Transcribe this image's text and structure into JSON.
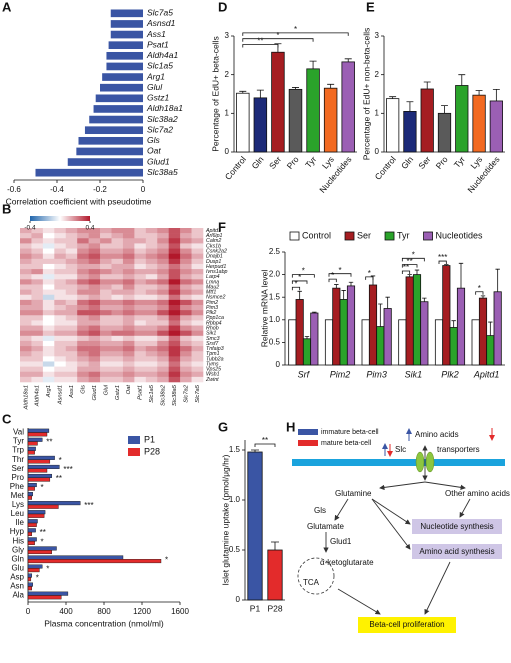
{
  "chart_data": [
    {
      "type": "hbar",
      "panel": "A",
      "xlabel": "Correlation coefficient with pseudotime",
      "color": "#3a55a4",
      "categories": [
        "Slc7a5",
        "Asnsd1",
        "Ass1",
        "Psat1",
        "Aldh4a1",
        "Slc1a5",
        "Arg1",
        "Glul",
        "Gstz1",
        "Aldh18a1",
        "Slc38a2",
        "Slc7a2",
        "Gls",
        "Oat",
        "Glud1",
        "Slc38a5"
      ],
      "values": [
        -0.15,
        -0.15,
        -0.15,
        -0.16,
        -0.17,
        -0.17,
        -0.19,
        -0.2,
        -0.22,
        -0.23,
        -0.25,
        -0.27,
        -0.3,
        -0.31,
        -0.35,
        -0.5
      ],
      "xlim": [
        -0.6,
        0
      ],
      "xticks": [
        -0.6,
        -0.4,
        -0.2,
        0
      ]
    },
    {
      "type": "bar",
      "panel": "D",
      "ylabel": "Percentage of EdU+ beta-cells",
      "categories": [
        "Control",
        "Gln",
        "Ser",
        "Pro",
        "Tyr",
        "Lys",
        "Nucleotides"
      ],
      "values": [
        1.52,
        1.4,
        2.58,
        1.62,
        2.15,
        1.65,
        2.33
      ],
      "errors": [
        0.05,
        0.2,
        0.22,
        0.05,
        0.2,
        0.1,
        0.08
      ],
      "colors": [
        "#ffffff",
        "#1c2a78",
        "#a51d21",
        "#5a5a5a",
        "#2aa32a",
        "#f26a21",
        "#9b5fb4"
      ],
      "ylim": [
        0,
        3
      ],
      "yticks": [
        0,
        1,
        2,
        3
      ],
      "annotations": [
        {
          "text": "**",
          "from": "Control",
          "to": "Ser",
          "y": 2.78
        },
        {
          "text": "*",
          "from": "Control",
          "to": "Tyr",
          "y": 2.93
        },
        {
          "text": "*",
          "from": "Control",
          "to": "Nucleotides",
          "y": 3.08
        }
      ]
    },
    {
      "type": "bar",
      "panel": "E",
      "ylabel": "Percentage of EdU+ non-beta-cells",
      "categories": [
        "Control",
        "Gln",
        "Ser",
        "Pro",
        "Tyr",
        "Lys",
        "Nucleotides"
      ],
      "values": [
        1.38,
        1.05,
        1.63,
        1.0,
        1.72,
        1.47,
        1.32
      ],
      "errors": [
        0.05,
        0.25,
        0.18,
        0.2,
        0.28,
        0.12,
        0.3
      ],
      "colors": [
        "#ffffff",
        "#1c2a78",
        "#a51d21",
        "#5a5a5a",
        "#2aa32a",
        "#f26a21",
        "#9b5fb4"
      ],
      "ylim": [
        0,
        3
      ],
      "yticks": [
        0,
        1,
        2,
        3
      ]
    },
    {
      "type": "heatmap",
      "panel": "B",
      "clim": [
        -0.4,
        0.4
      ],
      "colorbar_ticks": [
        -0.4,
        0.4
      ],
      "columns": [
        "Aldh18a1",
        "Aldh4a1",
        "Arg1",
        "Asnsd1",
        "Ass1",
        "Gls",
        "Glud1",
        "Glul",
        "Gstz1",
        "Oat",
        "Psat1",
        "Slc1a5",
        "Slc38a2",
        "Slc38a5",
        "Slc7a2",
        "Slc7a5"
      ],
      "rows": [
        "Apitd1",
        "Arl6ip1",
        "Calm2",
        "Cks1b",
        "Csnk2a2",
        "Dnajb1",
        "Dusp1",
        "Herpud1",
        "Ivns1abp",
        "Larp4",
        "Lmna",
        "Mau2",
        "Mtf1",
        "Nsmce2",
        "Pim2",
        "Pim3",
        "Plk2",
        "Ppp1ca",
        "Rbbp4",
        "Rhob",
        "Sik1",
        "Smc3",
        "Srsf7",
        "Tnfaip3",
        "Tpm1",
        "Tubb2a",
        "Tyms",
        "Vps25",
        "Wsb1",
        "Zwint"
      ],
      "values": [
        [
          0.15,
          0.1,
          0.05,
          0.1,
          0.15,
          0.2,
          0.2,
          0.15,
          0.2,
          0.2,
          0.1,
          0.15,
          0.2,
          0.3,
          0.2,
          0.1
        ],
        [
          0.1,
          0.15,
          0,
          0.05,
          0.1,
          0.15,
          0.2,
          0.1,
          0.15,
          0.2,
          0.1,
          0.1,
          0.15,
          0.3,
          0.15,
          0.1
        ],
        [
          0.2,
          0.1,
          0.05,
          0.1,
          0.1,
          0.25,
          0.15,
          0.2,
          0.1,
          0.15,
          0.15,
          0.1,
          0.2,
          0.35,
          0.2,
          0.15
        ],
        [
          0.1,
          0.05,
          -0.05,
          0.05,
          0.1,
          0.15,
          0.2,
          0.1,
          0.1,
          0.15,
          0.05,
          0.1,
          0.15,
          0.3,
          0.1,
          0.05
        ],
        [
          0.15,
          0.1,
          0,
          0.1,
          0.05,
          0.2,
          0.25,
          0.15,
          0.15,
          0.2,
          0.1,
          0.15,
          0.2,
          0.35,
          0.2,
          0.1
        ],
        [
          0.2,
          0.15,
          0.05,
          0.15,
          0.1,
          0.25,
          0.3,
          0.2,
          0.2,
          0.25,
          0.15,
          0.2,
          0.25,
          0.4,
          0.25,
          0.15
        ],
        [
          0.15,
          0.1,
          0.1,
          0.1,
          0.15,
          0.2,
          0.25,
          0.15,
          0.1,
          0.2,
          0.1,
          0.15,
          0.2,
          0.35,
          0.2,
          0.1
        ],
        [
          0.1,
          0.1,
          0,
          0.05,
          0.1,
          0.15,
          0.15,
          0.1,
          0.15,
          0.15,
          0.05,
          0.1,
          0.15,
          0.25,
          0.15,
          0.05
        ],
        [
          0.15,
          0.2,
          0.05,
          0.1,
          0.1,
          0.2,
          0.25,
          0.2,
          0.15,
          0.2,
          0.15,
          0.15,
          0.2,
          0.3,
          0.2,
          0.15
        ],
        [
          0.1,
          0.05,
          -0.05,
          0.05,
          0.05,
          0.15,
          0.2,
          0.1,
          0.1,
          0.15,
          0.1,
          0.05,
          0.15,
          0.3,
          0.15,
          0.1
        ],
        [
          0.2,
          0.15,
          0.05,
          0.1,
          0.15,
          0.25,
          0.3,
          0.2,
          0.2,
          0.25,
          0.15,
          0.2,
          0.25,
          0.4,
          0.25,
          0.2
        ],
        [
          0.1,
          0.1,
          0,
          0.1,
          0.1,
          0.15,
          0.2,
          0.15,
          0.1,
          0.2,
          0.1,
          0.1,
          0.15,
          0.3,
          0.15,
          0.1
        ],
        [
          0.15,
          0.1,
          0.05,
          0.05,
          0.1,
          0.2,
          0.2,
          0.1,
          0.15,
          0.15,
          0.1,
          0.15,
          0.2,
          0.35,
          0.2,
          0.15
        ],
        [
          0.05,
          0.1,
          -0.1,
          0.05,
          0.05,
          0.1,
          0.15,
          0.1,
          0.05,
          0.1,
          0.05,
          0.05,
          0.1,
          0.25,
          0.1,
          0.05
        ],
        [
          0.2,
          0.15,
          0.05,
          0.15,
          0.1,
          0.25,
          0.3,
          0.2,
          0.2,
          0.25,
          0.2,
          0.2,
          0.25,
          0.4,
          0.3,
          0.2
        ],
        [
          0.15,
          0.15,
          0.05,
          0.1,
          0.15,
          0.2,
          0.25,
          0.15,
          0.15,
          0.2,
          0.15,
          0.15,
          0.2,
          0.35,
          0.2,
          0.15
        ],
        [
          0.2,
          0.2,
          0.1,
          0.15,
          0.15,
          0.3,
          0.3,
          0.25,
          0.2,
          0.25,
          0.2,
          0.2,
          0.3,
          0.4,
          0.3,
          0.2
        ],
        [
          0.1,
          0.1,
          0,
          0.05,
          0.1,
          0.15,
          0.2,
          0.1,
          0.1,
          0.15,
          0.1,
          0.1,
          0.15,
          0.3,
          0.15,
          0.1
        ],
        [
          0.1,
          0.05,
          0,
          0.05,
          0.05,
          0.15,
          0.15,
          0.1,
          0.1,
          0.15,
          0.05,
          0.1,
          0.1,
          0.25,
          0.1,
          0.05
        ],
        [
          0.15,
          0.15,
          0.05,
          0.1,
          0.1,
          0.2,
          0.25,
          0.15,
          0.15,
          0.2,
          0.15,
          0.15,
          0.2,
          0.35,
          0.2,
          0.15
        ],
        [
          0.2,
          0.2,
          0.1,
          0.15,
          0.15,
          0.25,
          0.3,
          0.2,
          0.25,
          0.25,
          0.2,
          0.2,
          0.3,
          0.4,
          0.3,
          0.2
        ],
        [
          0.1,
          0.05,
          -0.05,
          0.05,
          0.05,
          0.1,
          0.15,
          0.1,
          0.05,
          0.1,
          0.05,
          0.05,
          0.1,
          0.25,
          0.1,
          0.05
        ],
        [
          0.15,
          0.1,
          0,
          0.1,
          0.1,
          0.2,
          0.2,
          0.15,
          0.15,
          0.2,
          0.1,
          0.1,
          0.2,
          0.3,
          0.15,
          0.1
        ],
        [
          0.2,
          0.15,
          0.05,
          0.1,
          0.15,
          0.25,
          0.25,
          0.2,
          0.2,
          0.25,
          0.15,
          0.2,
          0.25,
          0.35,
          0.25,
          0.15
        ],
        [
          0.15,
          0.1,
          0.05,
          0.1,
          0.1,
          0.2,
          0.25,
          0.15,
          0.15,
          0.2,
          0.1,
          0.15,
          0.2,
          0.35,
          0.2,
          0.1
        ],
        [
          0.1,
          0.1,
          0,
          0.05,
          0.1,
          0.15,
          0.2,
          0.1,
          0.1,
          0.15,
          0.1,
          0.1,
          0.15,
          0.3,
          0.15,
          0.1
        ],
        [
          0.05,
          0.05,
          -0.1,
          0,
          0.05,
          0.1,
          0.15,
          0.05,
          0.05,
          0.1,
          0.05,
          0.05,
          0.1,
          0.25,
          0.1,
          0.05
        ],
        [
          0.1,
          0.1,
          0,
          0.05,
          0.05,
          0.15,
          0.15,
          0.1,
          0.1,
          0.15,
          0.1,
          0.1,
          0.15,
          0.3,
          0.15,
          0.1
        ],
        [
          0.15,
          0.15,
          0.05,
          0.1,
          0.1,
          0.2,
          0.25,
          0.15,
          0.15,
          0.2,
          0.15,
          0.15,
          0.2,
          0.35,
          0.2,
          0.15
        ],
        [
          0.1,
          0.05,
          -0.05,
          0.05,
          0.05,
          0.15,
          0.2,
          0.1,
          0.1,
          0.15,
          0.05,
          0.1,
          0.15,
          0.3,
          0.15,
          0.05
        ]
      ]
    },
    {
      "type": "grouped_bar",
      "panel": "F",
      "ylabel": "Relative mRNA level",
      "categories": [
        "Srf",
        "Pim2",
        "Pim3",
        "Sik1",
        "Plk2",
        "Apitd1"
      ],
      "series": [
        {
          "name": "Control",
          "color": "#ffffff",
          "values": [
            1,
            1,
            1,
            1,
            1,
            1
          ]
        },
        {
          "name": "Ser",
          "color": "#a51d21",
          "values": [
            1.45,
            1.7,
            1.77,
            1.95,
            2.2,
            1.48
          ],
          "errors": [
            0.18,
            0.08,
            0.2,
            0.05,
            0.02,
            0.05
          ]
        },
        {
          "name": "Tyr",
          "color": "#2aa32a",
          "values": [
            0.58,
            1.45,
            0.85,
            2.0,
            0.83,
            0.65
          ],
          "errors": [
            0.05,
            0.2,
            0.5,
            0.1,
            0.15,
            0.3
          ]
        },
        {
          "name": "Nucleotides",
          "color": "#9b5fb4",
          "values": [
            1.15,
            1.75,
            1.25,
            1.4,
            1.7,
            1.62
          ],
          "errors": [
            0.02,
            0.08,
            0.25,
            0.08,
            0.55,
            0.5
          ]
        }
      ],
      "ylim": [
        0,
        2.5
      ],
      "yticks": [
        0,
        0.5,
        {
          "value": 1,
          "label": "1.0"
        },
        1.5,
        {
          "value": 2,
          "label": "2.0"
        },
        2.5
      ],
      "annotations": [
        {
          "text": "*",
          "category": "Srf",
          "from": "Control",
          "to": "Ser",
          "y": 1.72
        },
        {
          "text": "*",
          "category": "Srf",
          "from": "Control",
          "to": "Tyr",
          "y": 1.86
        },
        {
          "text": "*",
          "category": "Srf",
          "from": "Control",
          "to": "Nucleotides",
          "y": 2.0
        },
        {
          "text": "*",
          "category": "Pim2",
          "from": "Control",
          "to": "Ser",
          "y": 1.9
        },
        {
          "text": "*",
          "category": "Pim2",
          "from": "Control",
          "to": "Nucleotides",
          "y": 2.02
        },
        {
          "text": "*",
          "category": "Pim3",
          "from": "Control",
          "to": "Ser",
          "y": 1.95
        },
        {
          "text": "**",
          "category": "Sik1",
          "from": "Control",
          "to": "Ser",
          "y": 2.08
        },
        {
          "text": "**",
          "category": "Sik1",
          "from": "Control",
          "to": "Tyr",
          "y": 2.22
        },
        {
          "text": "*",
          "category": "Sik1",
          "from": "Control",
          "to": "Nucleotides",
          "y": 2.36
        },
        {
          "text": "***",
          "category": "Plk2",
          "from": "Control",
          "to": "Ser",
          "y": 2.3
        },
        {
          "text": "*",
          "category": "Apitd1",
          "from": "Control",
          "to": "Ser",
          "y": 1.62
        }
      ]
    },
    {
      "type": "grouped_hbar",
      "panel": "C",
      "xlabel": "Plasma concentration (nmol/ml)",
      "categories": [
        "Val",
        "Tyr",
        "Trp",
        "Thr",
        "Ser",
        "Pro",
        "Phe",
        "Met",
        "Lys",
        "Leu",
        "Ile",
        "Hyp",
        "His",
        "Gly",
        "Gln",
        "Glu",
        "Asp",
        "Asn",
        "Ala"
      ],
      "series": [
        {
          "name": "P1",
          "color": "#3a55a4",
          "values": [
            220,
            150,
            80,
            280,
            330,
            250,
            90,
            50,
            550,
            180,
            100,
            80,
            90,
            300,
            1000,
            150,
            40,
            50,
            420
          ]
        },
        {
          "name": "P28",
          "color": "#e32b2b",
          "values": [
            200,
            100,
            70,
            230,
            200,
            230,
            70,
            40,
            320,
            170,
            90,
            40,
            70,
            250,
            1400,
            120,
            30,
            40,
            350
          ]
        }
      ],
      "xlim": [
        0,
        1600
      ],
      "xticks": [
        0,
        400,
        800,
        1200,
        1600
      ],
      "annotations": [
        {
          "text": "**",
          "category": "Tyr"
        },
        {
          "text": "*",
          "category": "Thr"
        },
        {
          "text": "***",
          "category": "Ser"
        },
        {
          "text": "**",
          "category": "Pro"
        },
        {
          "text": "*",
          "category": "Phe"
        },
        {
          "text": "***",
          "category": "Lys"
        },
        {
          "text": "**",
          "category": "Hyp"
        },
        {
          "text": "*",
          "category": "His"
        },
        {
          "text": "*",
          "category": "Gln"
        },
        {
          "text": "*",
          "category": "Glu"
        },
        {
          "text": "*",
          "category": "Asp"
        }
      ]
    },
    {
      "type": "bar",
      "panel": "G",
      "ylabel": "Islet glutamine uptake (pmol/μg/hr)",
      "categories": [
        "P1",
        "P28"
      ],
      "values": [
        1.48,
        0.5
      ],
      "errors": [
        0.02,
        0.08
      ],
      "colors": [
        "#3a55a4",
        "#e32b2b"
      ],
      "ylim": [
        0,
        1.6
      ],
      "yticks": [
        0,
        0.5,
        {
          "value": 1,
          "label": "1.0"
        },
        1.5
      ],
      "annotations": [
        {
          "text": "**",
          "from": "P1",
          "to": "P28",
          "y": 1.56
        }
      ]
    }
  ],
  "diagram": {
    "panel": "H",
    "legend": [
      "immature beta-cell",
      "mature beta-cell"
    ],
    "nodes": [
      "Amino acids",
      "Slc",
      "transporters",
      "Glutamine",
      "Other amino acids",
      "Gls",
      "Glutamate",
      "Glud1",
      "α-ketoglutarate",
      "TCA",
      "Nucleotide synthesis",
      "Amino acid synthesis",
      "Beta-cell proliferation"
    ]
  }
}
